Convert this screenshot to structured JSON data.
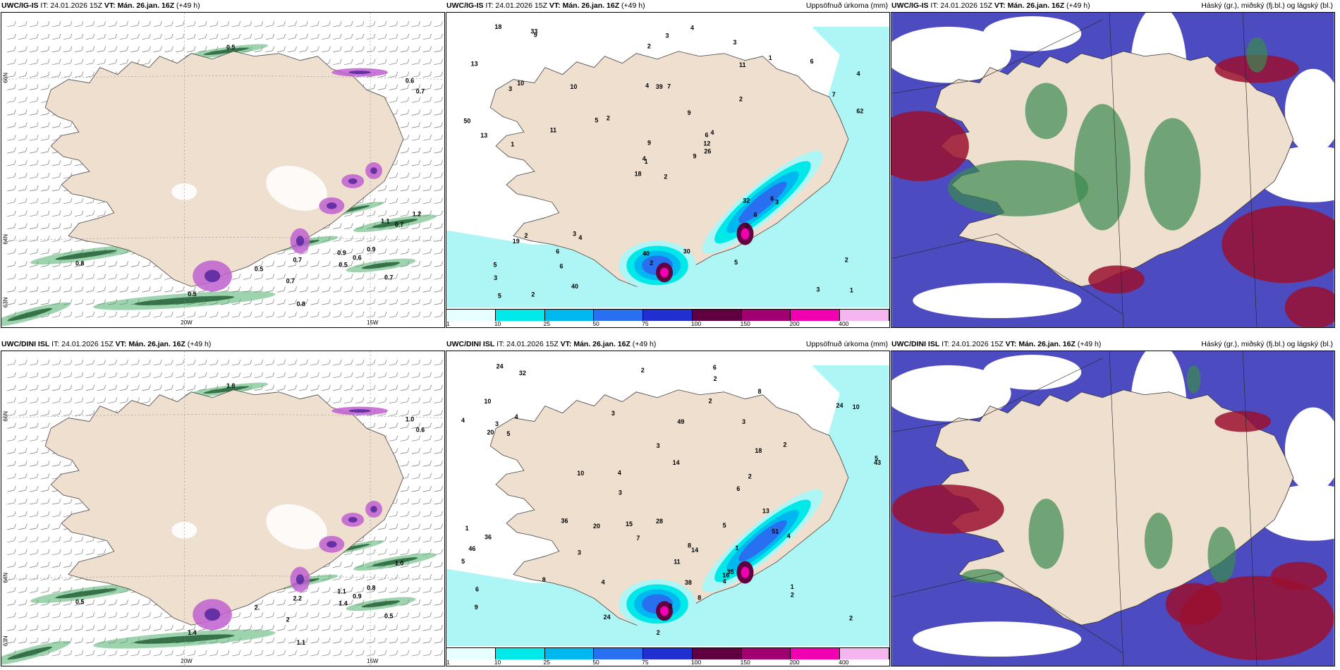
{
  "colors": {
    "land": "#efdfcf",
    "sea_light": "#aef6f6",
    "cyan": "#00e8e8",
    "blue1": "#00b8f0",
    "blue2": "#2870f0",
    "blue3": "#2030d0",
    "purple1": "#600040",
    "magenta1": "#a00070",
    "magenta2": "#f000b0",
    "pink": "#f5b6f0",
    "green": "#3a8a50",
    "red": "#9a1030",
    "violet": "#4c4cc0"
  },
  "legend": {
    "ticks": [
      "1",
      "10",
      "25",
      "50",
      "75",
      "100",
      "150",
      "200",
      "400"
    ]
  },
  "axes": {
    "lat66": "66N",
    "lat64": "64N",
    "lat63": "63N",
    "lon20": "20W",
    "lon15": "15W"
  },
  "rows": [
    {
      "model": "UWC/IG-IS",
      "panels": [
        {
          "model": "UWC/IG-IS",
          "it": "IT: 24.01.2026 15Z",
          "vt": "VT: Mán. 26.jan. 16Z",
          "lead": "(+49 h)",
          "title": ""
        },
        {
          "model": "UWC/IG-IS",
          "it": "IT: 24.01.2026 15Z",
          "vt": "VT: Mán. 26.jan. 16Z",
          "lead": "(+49 h)",
          "title": "Uppsöfnuð úrkoma (mm)"
        },
        {
          "model": "UWC/IG-IS",
          "it": "IT: 24.01.2026 15Z",
          "vt": "VT: Mán. 26.jan. 16Z",
          "lead": "(+49 h)",
          "title": "Háský (gr.), miðský (fj.bl.) og lágský (bl.)"
        }
      ],
      "wind_labels": [
        "0.5",
        "0.8",
        "0.5",
        "0.5",
        "0.7",
        "0.7",
        "0.9",
        "0.5",
        "0.9",
        "0.7",
        "0.6",
        "0.7",
        "0.7",
        "0.6",
        "0.8",
        "1.1",
        "1.2"
      ],
      "precip_labels": [
        "2",
        "3",
        "1",
        "5",
        "6",
        "4",
        "3",
        "7",
        "11",
        "9",
        "9",
        "1",
        "1",
        "4",
        "18",
        "2",
        "2",
        "4",
        "9",
        "2",
        "2",
        "3",
        "6",
        "39",
        "4",
        "3",
        "10",
        "2",
        "13",
        "32",
        "62",
        "4",
        "40",
        "9",
        "10",
        "1",
        "3",
        "3",
        "2",
        "6",
        "4",
        "5",
        "11",
        "3",
        "40",
        "50",
        "12",
        "5",
        "2",
        "26",
        "19",
        "7",
        "13",
        "6",
        "5",
        "6",
        "33",
        "18",
        "30",
        "6",
        "3"
      ]
    },
    {
      "model": "UWC/DINI ISL",
      "panels": [
        {
          "model": "UWC/DINI ISL",
          "it": "IT: 24.01.2026 15Z",
          "vt": "VT: Mán. 26.jan. 16Z",
          "lead": "(+49 h)",
          "title": ""
        },
        {
          "model": "UWC/DINI ISL",
          "it": "IT: 24.01.2026 15Z",
          "vt": "VT: Mán. 26.jan. 16Z",
          "lead": "(+49 h)",
          "title": "Uppsöfnuð úrkoma (mm)"
        },
        {
          "model": "UWC/DINI ISL",
          "it": "IT: 24.01.2026 15Z",
          "vt": "VT: Mán. 26.jan. 16Z",
          "lead": "(+49 h)",
          "title": "Háský (gr.), miðský (fj.bl.) og lágský (bl.)"
        }
      ],
      "wind_labels": [
        "1.8",
        "0.5",
        "1.4",
        "2.",
        "2",
        "2.2",
        "1.1",
        "1.4",
        "0.8",
        "0.5",
        "1.0",
        "0.6",
        "1.0",
        "0.9",
        "1.1"
      ],
      "precip_labels": [
        "2",
        "2",
        "3",
        "6",
        "5",
        "6",
        "4",
        "2",
        "5",
        "3",
        "5",
        "11",
        "5",
        "2",
        "24",
        "2",
        "4",
        "14",
        "3",
        "3",
        "1",
        "2",
        "4",
        "2",
        "4",
        "43",
        "2",
        "2",
        "35",
        "13",
        "51",
        "10",
        "15",
        "3",
        "8",
        "10",
        "4",
        "49",
        "18",
        "10",
        "36",
        "46",
        "8",
        "20",
        "38",
        "32",
        "20",
        "6",
        "36",
        "24",
        "14",
        "16",
        "28",
        "8",
        "8",
        "9",
        "7",
        "24",
        "3",
        "1",
        "4",
        "1"
      ]
    }
  ]
}
